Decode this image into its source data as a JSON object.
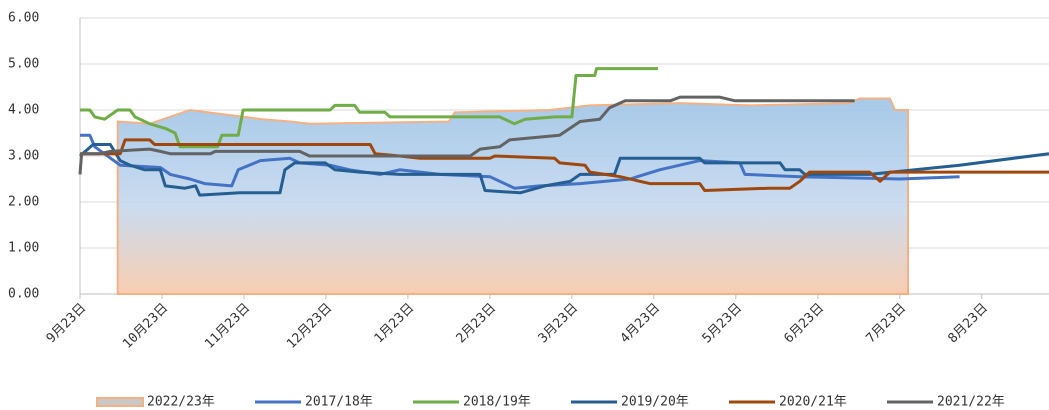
{
  "chart_data": {
    "type": "line",
    "xlim": [
      0,
      11.82
    ],
    "ylim": [
      0,
      6
    ],
    "xticks": [
      {
        "value": 0,
        "label": "9月23日"
      },
      {
        "value": 1,
        "label": "10月23日"
      },
      {
        "value": 2,
        "label": "11月23日"
      },
      {
        "value": 3,
        "label": "12月23日"
      },
      {
        "value": 4,
        "label": "1月23日"
      },
      {
        "value": 5,
        "label": "2月23日"
      },
      {
        "value": 6,
        "label": "3月23日"
      },
      {
        "value": 7,
        "label": "4月23日"
      },
      {
        "value": 8,
        "label": "5月23日"
      },
      {
        "value": 9,
        "label": "6月23日"
      },
      {
        "value": 10,
        "label": "7月23日"
      },
      {
        "value": 11,
        "label": "8月23日"
      }
    ],
    "yticks": [
      {
        "value": 0,
        "label": "0.00"
      },
      {
        "value": 1,
        "label": "1.00"
      },
      {
        "value": 2,
        "label": "2.00"
      },
      {
        "value": 3,
        "label": "3.00"
      },
      {
        "value": 4,
        "label": "4.00"
      },
      {
        "value": 5,
        "label": "5.00"
      },
      {
        "value": 6,
        "label": "6.00"
      }
    ],
    "grid": true,
    "series": [
      {
        "name": "2022/23年",
        "kind": "area",
        "color": "#f4b183",
        "x": [
          0.46,
          0.46,
          0.85,
          1.34,
          2.22,
          2.56,
          2.8,
          4.5,
          4.57,
          5.73,
          6.22,
          7.32,
          8.17,
          9.39,
          9.51,
          9.88,
          9.94,
          10.1,
          10.1
        ],
        "values": [
          0,
          3.75,
          3.7,
          4.0,
          3.8,
          3.75,
          3.7,
          3.75,
          3.95,
          4.0,
          4.1,
          4.15,
          4.1,
          4.15,
          4.25,
          4.25,
          4.0,
          4.0,
          0
        ]
      },
      {
        "name": "2017/18年",
        "color": "#4472c4",
        "x": [
          0,
          0.12,
          0.18,
          0.49,
          0.98,
          1.1,
          1.34,
          1.52,
          1.85,
          1.93,
          2.2,
          2.56,
          2.68,
          3.05,
          3.29,
          3.66,
          3.9,
          4.39,
          5,
          5.3,
          5.61,
          6.1,
          6.71,
          7.07,
          7.56,
          8.05,
          8.11,
          8.78,
          10,
          10.73
        ],
        "values": [
          3.45,
          3.45,
          3.2,
          2.8,
          2.75,
          2.6,
          2.5,
          2.4,
          2.35,
          2.7,
          2.9,
          2.95,
          2.85,
          2.8,
          2.7,
          2.6,
          2.7,
          2.6,
          2.55,
          2.3,
          2.35,
          2.4,
          2.5,
          2.7,
          2.9,
          2.85,
          2.6,
          2.55,
          2.5,
          2.55
        ]
      },
      {
        "name": "2018/19年",
        "color": "#70ad47",
        "x": [
          0,
          0.12,
          0.18,
          0.3,
          0.46,
          0.61,
          0.67,
          0.85,
          1.04,
          1.16,
          1.22,
          1.68,
          1.73,
          1.93,
          1.99,
          3.05,
          3.11,
          3.35,
          3.41,
          3.72,
          3.78,
          5.12,
          5.3,
          5.43,
          5.79,
          6,
          6.05,
          6.28,
          6.3,
          7.05
        ],
        "values": [
          4.0,
          4.0,
          3.85,
          3.8,
          4.0,
          4.0,
          3.85,
          3.7,
          3.6,
          3.5,
          3.2,
          3.2,
          3.45,
          3.45,
          4.0,
          4.0,
          4.1,
          4.1,
          3.95,
          3.95,
          3.85,
          3.85,
          3.7,
          3.8,
          3.85,
          3.85,
          4.75,
          4.75,
          4.9,
          4.9
        ]
      },
      {
        "name": "2019/20年",
        "color": "#255e91",
        "x": [
          0,
          0.16,
          0.37,
          0.49,
          0.61,
          0.79,
          0.98,
          1.04,
          1.28,
          1.41,
          1.46,
          1.95,
          2.44,
          2.5,
          2.62,
          2.99,
          3.11,
          3.41,
          3.9,
          4.88,
          4.94,
          5.37,
          5.67,
          5.98,
          6.1,
          6.52,
          6.59,
          7.56,
          7.62,
          8.54,
          8.6,
          8.78,
          8.84,
          9.63,
          10.73,
          11.82
        ],
        "values": [
          3.0,
          3.25,
          3.25,
          2.9,
          2.8,
          2.7,
          2.7,
          2.35,
          2.3,
          2.35,
          2.15,
          2.2,
          2.2,
          2.7,
          2.85,
          2.85,
          2.7,
          2.65,
          2.6,
          2.6,
          2.25,
          2.2,
          2.35,
          2.45,
          2.6,
          2.6,
          2.95,
          2.95,
          2.85,
          2.85,
          2.7,
          2.7,
          2.6,
          2.6,
          2.8,
          3.05
        ]
      },
      {
        "name": "2020/21年",
        "color": "#9e480e",
        "x": [
          0,
          0.49,
          0.55,
          0.85,
          0.91,
          3.54,
          3.6,
          3.9,
          4.15,
          5,
          5.06,
          5.79,
          5.85,
          6.16,
          6.22,
          6.59,
          6.95,
          7.56,
          7.62,
          8.41,
          8.66,
          8.78,
          8.9,
          9.63,
          9.76,
          9.88,
          11.82
        ],
        "values": [
          3.05,
          3.05,
          3.35,
          3.35,
          3.25,
          3.25,
          3.05,
          3.0,
          2.95,
          2.95,
          3.0,
          2.95,
          2.85,
          2.8,
          2.65,
          2.55,
          2.4,
          2.4,
          2.25,
          2.3,
          2.3,
          2.45,
          2.65,
          2.65,
          2.45,
          2.65,
          2.65
        ]
      },
      {
        "name": "2021/22年",
        "color": "#636363",
        "x": [
          0,
          0.02,
          0.24,
          0.37,
          0.85,
          0.98,
          1.1,
          1.59,
          1.65,
          2.68,
          2.8,
          4.76,
          4.88,
          5.12,
          5.24,
          5.85,
          6.1,
          6.34,
          6.46,
          6.65,
          7.2,
          7.32,
          7.8,
          7.99,
          9.45
        ],
        "values": [
          2.6,
          3.05,
          3.05,
          3.1,
          3.15,
          3.1,
          3.05,
          3.05,
          3.1,
          3.1,
          3.0,
          3.0,
          3.15,
          3.2,
          3.35,
          3.45,
          3.75,
          3.8,
          4.05,
          4.2,
          4.2,
          4.28,
          4.28,
          4.2,
          4.2
        ]
      }
    ]
  }
}
